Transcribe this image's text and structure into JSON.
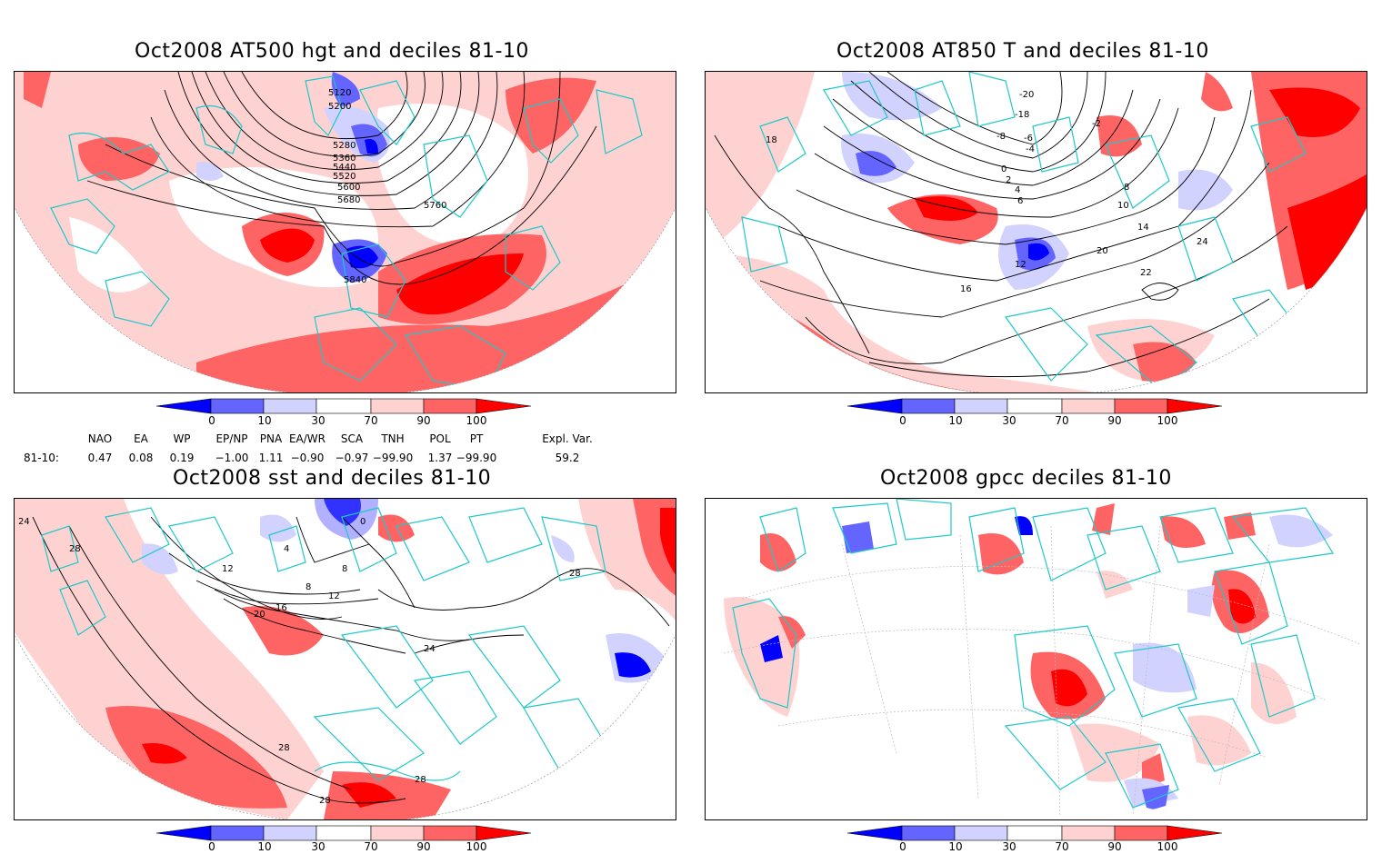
{
  "panels": [
    {
      "title": "Oct2008 AT500 hgt and deciles 81-10",
      "contour_labels": [
        "5120",
        "5200",
        "5280",
        "5360",
        "5440",
        "5520",
        "5600",
        "5680",
        "5760",
        "5840"
      ]
    },
    {
      "title": "Oct2008 AT850 T and deciles 81-10",
      "contour_labels": [
        "-20",
        "-18",
        "-8",
        "-6",
        "-4",
        "-2",
        "0",
        "2",
        "4",
        "6",
        "8",
        "10",
        "12",
        "14",
        "16",
        "18",
        "20",
        "22",
        "24"
      ]
    },
    {
      "title": "Oct2008 sst and deciles 81-10",
      "contour_labels": [
        "24",
        "28",
        "12",
        "4",
        "8",
        "16",
        "20",
        "0"
      ]
    },
    {
      "title": "Oct2008 gpcc deciles 81-10",
      "contour_labels": []
    }
  ],
  "colorbar": {
    "ticks": [
      "0",
      "10",
      "30",
      "70",
      "90",
      "100"
    ],
    "colors": [
      "#0000ff",
      "#6464ff",
      "#d2d2ff",
      "#ffffff",
      "#ffd2d2",
      "#ff6464",
      "#ff0000"
    ]
  },
  "indices": {
    "headers": [
      "NAO",
      "EA",
      "WP",
      "EP/NP",
      "PNA",
      "EA/WR",
      "SCA",
      "TNH",
      "POL",
      "PT",
      "Expl. Var."
    ],
    "row_label": "81-10:",
    "values": [
      "0.47",
      "0.08",
      "0.19",
      "−1.00",
      "1.11",
      "−0.90",
      "−0.97",
      "−99.90",
      "1.37",
      "−99.90",
      "59.2"
    ]
  },
  "colors": {
    "coastline": "#1ec8c8",
    "contour": "#000000",
    "frame": "#000000"
  }
}
